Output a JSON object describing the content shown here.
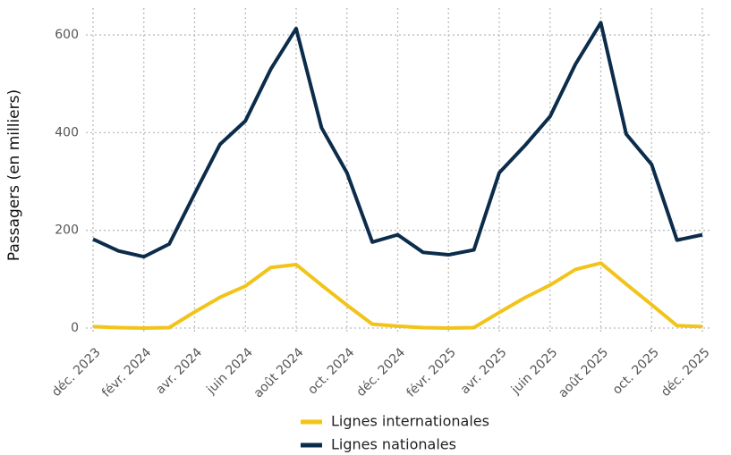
{
  "chart_data": {
    "type": "line",
    "y_label": "Passagers (en milliers)",
    "categories": [
      "déc. 2023",
      null,
      "févr. 2024",
      null,
      "avr. 2024",
      null,
      "juin 2024",
      null,
      "août 2024",
      null,
      "oct. 2024",
      null,
      "déc. 2024",
      null,
      "févr. 2025",
      null,
      "avr. 2025",
      null,
      "juin 2025",
      null,
      "août 2025",
      null,
      "oct. 2025",
      null,
      "déc. 2025"
    ],
    "series": [
      {
        "name": "Lignes internationales",
        "color": "#f2c419",
        "values": [
          3,
          1,
          0,
          1,
          33,
          63,
          86,
          124,
          130,
          88,
          47,
          8,
          4,
          1,
          0,
          1,
          32,
          62,
          88,
          120,
          133,
          90,
          48,
          5,
          3
        ]
      },
      {
        "name": "Lignes nationales",
        "color": "#0b2c4a",
        "values": [
          182,
          158,
          146,
          172,
          275,
          376,
          424,
          530,
          613,
          410,
          318,
          176,
          191,
          155,
          150,
          160,
          318,
          373,
          433,
          540,
          625,
          397,
          335,
          180,
          191
        ]
      }
    ],
    "ylim": [
      -10,
      655
    ],
    "yticks": [
      0,
      200,
      400,
      600
    ],
    "grid": true
  }
}
